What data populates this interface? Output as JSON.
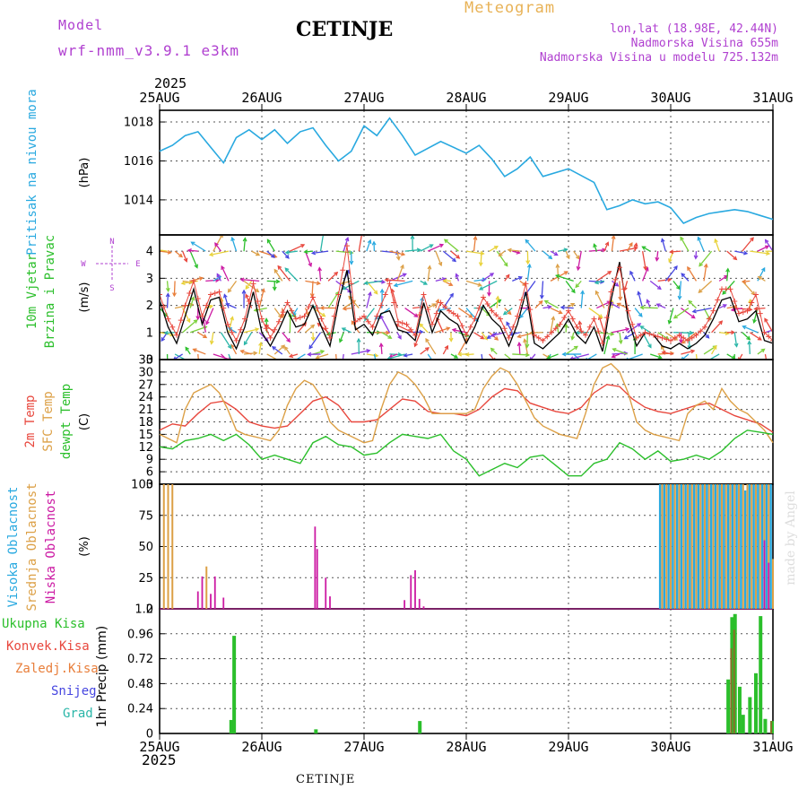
{
  "header": {
    "model_label": "Model",
    "model_name": "wrf-nmm_v3.9.1 e3km",
    "station": "CETINJE",
    "meteogram": "Meteogram",
    "lonlat": "lon,lat (18.98E, 42.44N)",
    "elevation": "Nadmorska Visina 655m",
    "model_elevation": "Nadmorska Visina u modelu 725.132m",
    "year_top": "2025",
    "year_bottom": "2025",
    "footer_station": "CETINJE",
    "credit": "made by Angel"
  },
  "colors": {
    "pressure": "#29a9e0",
    "temp2m": "#e8473d",
    "sfc": "#dca046",
    "dewpt": "#2bbf2b",
    "high_cloud": "#29a9e0",
    "mid_cloud": "#dca046",
    "low_cloud": "#cc1aa3",
    "total_precip": "#2bbf2b",
    "conv_precip": "#e8473d",
    "frozen_precip": "#e87e3a",
    "snow": "#4646e0",
    "hail": "#2ab6a8",
    "wind_model": "#000000",
    "wind_gust": "#e8473d",
    "compass": "#b040d0"
  },
  "compass": {
    "north": "N",
    "south": "S",
    "west": "W",
    "east": "E"
  },
  "chart_data": [
    {
      "type": "line",
      "id": "pressure",
      "ylabel": "(hPa)",
      "side_labels": [
        {
          "text": "Pritisak na nivou mora",
          "color": "#29a9e0"
        }
      ],
      "x_ticks": [
        "25AUG",
        "26AUG",
        "27AUG",
        "28AUG",
        "29AUG",
        "30AUG",
        "31AUG"
      ],
      "ylim": [
        1012.2,
        1018.6
      ],
      "yticks": [
        1014,
        1016,
        1018
      ],
      "hours": [
        0,
        3,
        6,
        9,
        12,
        15,
        18,
        21,
        24,
        27,
        30,
        33,
        36,
        39,
        42,
        45,
        48,
        51,
        54,
        57,
        60,
        66,
        72,
        75,
        78,
        81,
        84,
        87,
        90,
        96,
        102,
        105,
        108,
        111,
        114,
        117,
        120,
        123,
        126,
        129,
        132,
        135,
        138,
        141,
        144
      ],
      "values": [
        1016.5,
        1016.8,
        1017.3,
        1017.5,
        1016.7,
        1015.9,
        1017.2,
        1017.6,
        1017.1,
        1017.6,
        1016.9,
        1017.5,
        1017.7,
        1016.8,
        1016.0,
        1016.5,
        1017.8,
        1017.3,
        1018.2,
        1017.3,
        1016.3,
        1017.0,
        1016.4,
        1016.8,
        1016.1,
        1015.2,
        1015.6,
        1016.2,
        1015.2,
        1015.6,
        1014.9,
        1013.5,
        1013.7,
        1014.0,
        1013.8,
        1013.9,
        1013.6,
        1012.8,
        1013.1,
        1013.3,
        1013.4,
        1013.5,
        1013.4,
        1013.2,
        1013.0
      ]
    },
    {
      "type": "line",
      "id": "wind",
      "ylabel": "(m/s)",
      "side_labels": [
        {
          "text": "10m Vjetar",
          "color": "#2bbf2b"
        },
        {
          "text": "Brzina i Pravac",
          "color": "#2bbf2b"
        }
      ],
      "ylim": [
        0,
        4.6
      ],
      "yticks": [
        0,
        1,
        2,
        3,
        4
      ],
      "series": [
        {
          "name": "speed",
          "hours": [
            0,
            2,
            4,
            6,
            8,
            10,
            12,
            14,
            16,
            18,
            20,
            22,
            24,
            26,
            28,
            30,
            32,
            34,
            36,
            38,
            40,
            42,
            44,
            46,
            48,
            50,
            52,
            54,
            56,
            58,
            60,
            62,
            64,
            66,
            68,
            70,
            72,
            74,
            76,
            78,
            80,
            82,
            84,
            86,
            88,
            90,
            92,
            94,
            96,
            98,
            100,
            102,
            104,
            106,
            108,
            110,
            112,
            114,
            116,
            118,
            120,
            122,
            124,
            126,
            128,
            130,
            132,
            134,
            136,
            138,
            140,
            142,
            144
          ],
          "values": [
            2.2,
            1.2,
            0.6,
            1.6,
            2.6,
            1.3,
            2.2,
            2.3,
            1.0,
            0.4,
            1.2,
            2.5,
            1.0,
            0.5,
            1.1,
            1.8,
            1.2,
            1.3,
            2.0,
            1.2,
            0.5,
            2.1,
            3.3,
            1.1,
            1.3,
            0.9,
            1.7,
            1.8,
            1.1,
            1.0,
            0.7,
            2.1,
            1.0,
            1.8,
            1.5,
            1.3,
            0.6,
            1.2,
            2.0,
            1.5,
            1.2,
            0.5,
            1.3,
            2.5,
            0.6,
            0.4,
            0.7,
            1.0,
            1.5,
            0.9,
            0.6,
            1.2,
            0.3,
            2.2,
            3.6,
            1.5,
            0.5,
            1.0,
            0.9,
            0.5,
            0.4,
            0.6,
            0.4,
            0.6,
            0.9,
            1.5,
            2.2,
            2.3,
            1.4,
            1.5,
            1.8,
            0.7,
            0.6
          ]
        },
        {
          "name": "gust",
          "hours": [
            0,
            2,
            4,
            6,
            8,
            10,
            12,
            14,
            16,
            18,
            20,
            22,
            24,
            26,
            28,
            30,
            32,
            34,
            36,
            38,
            40,
            42,
            44,
            46,
            48,
            50,
            52,
            54,
            56,
            58,
            60,
            62,
            64,
            66,
            68,
            70,
            72,
            74,
            76,
            78,
            80,
            82,
            84,
            86,
            88,
            90,
            92,
            94,
            96,
            98,
            100,
            102,
            104,
            106,
            108,
            110,
            112,
            114,
            116,
            118,
            120,
            122,
            124,
            126,
            128,
            130,
            132,
            134,
            136,
            138,
            140,
            142,
            144
          ],
          "values": [
            2.4,
            1.5,
            0.9,
            2.0,
            2.9,
            1.6,
            2.4,
            2.5,
            1.3,
            0.7,
            1.5,
            2.8,
            1.5,
            0.8,
            1.4,
            2.1,
            1.5,
            1.6,
            2.3,
            1.5,
            0.8,
            2.4,
            4.2,
            1.4,
            1.6,
            1.2,
            2.0,
            2.8,
            1.4,
            1.3,
            0.9,
            2.4,
            1.3,
            2.1,
            1.8,
            1.6,
            0.9,
            1.5,
            2.3,
            1.8,
            1.5,
            0.8,
            1.6,
            2.8,
            0.9,
            0.7,
            1.0,
            1.3,
            1.8,
            1.2,
            0.9,
            1.5,
            0.6,
            2.5,
            3.4,
            1.8,
            0.8,
            1.0,
            0.9,
            0.8,
            0.7,
            0.9,
            0.7,
            0.9,
            1.2,
            1.8,
            2.6,
            2.6,
            1.7,
            1.8,
            2.4,
            1.0,
            0.7
          ]
        }
      ]
    },
    {
      "type": "line",
      "id": "temperature",
      "ylabel": "(C)",
      "side_labels": [
        {
          "text": "2m Temp",
          "color": "#e8473d"
        },
        {
          "text": "SFC Temp",
          "color": "#dca046"
        },
        {
          "text": "dewpt Temp",
          "color": "#2bbf2b"
        }
      ],
      "ylim": [
        3,
        33
      ],
      "yticks": [
        3,
        6,
        9,
        12,
        15,
        18,
        21,
        24,
        27,
        30,
        33
      ],
      "series": [
        {
          "name": "2m Temp",
          "hours": [
            0,
            3,
            6,
            9,
            12,
            15,
            18,
            21,
            24,
            27,
            30,
            33,
            36,
            39,
            42,
            45,
            48,
            51,
            54,
            57,
            60,
            63,
            66,
            69,
            72,
            75,
            78,
            81,
            84,
            87,
            90,
            93,
            96,
            99,
            102,
            105,
            108,
            111,
            114,
            117,
            120,
            123,
            126,
            129,
            132,
            135,
            138,
            141,
            144
          ],
          "values": [
            16,
            17.5,
            17,
            20,
            22.5,
            23,
            21,
            18,
            17,
            16.5,
            17,
            20,
            23,
            24,
            22,
            18,
            18,
            18.5,
            21,
            23.5,
            23,
            20.5,
            20,
            20,
            19.5,
            21,
            24,
            26,
            25.5,
            22.5,
            21.5,
            20.5,
            20,
            21.5,
            25,
            27,
            26.5,
            23.5,
            21.5,
            20.5,
            20,
            21,
            22,
            22.5,
            21,
            19.5,
            18.5,
            17.5,
            15.5
          ]
        },
        {
          "name": "SFC Temp",
          "hours": [
            0,
            2,
            4,
            6,
            8,
            10,
            12,
            14,
            16,
            18,
            20,
            22,
            24,
            26,
            28,
            30,
            32,
            34,
            36,
            38,
            40,
            42,
            44,
            46,
            48,
            50,
            52,
            54,
            56,
            58,
            60,
            62,
            64,
            66,
            68,
            70,
            72,
            74,
            76,
            78,
            80,
            82,
            84,
            86,
            88,
            90,
            92,
            94,
            96,
            98,
            100,
            102,
            104,
            106,
            108,
            110,
            112,
            114,
            116,
            118,
            120,
            122,
            124,
            126,
            128,
            130,
            132,
            134,
            136,
            138,
            140,
            142,
            144
          ],
          "values": [
            15,
            14,
            13,
            21,
            25,
            26,
            27,
            25,
            21,
            16,
            15,
            14.5,
            14,
            13.5,
            16,
            22,
            26,
            28,
            27,
            24,
            18,
            16,
            15,
            14,
            13,
            13.5,
            21,
            27,
            30,
            29,
            27,
            24,
            20,
            20,
            20,
            20,
            20,
            21,
            26,
            29,
            31,
            30,
            27,
            23,
            19,
            17,
            16,
            15,
            14.5,
            14,
            20,
            27,
            31,
            32,
            30,
            25,
            18,
            16,
            15,
            14.5,
            14,
            13.5,
            20,
            22,
            23,
            21,
            26,
            23,
            21,
            20,
            18,
            16,
            13
          ]
        },
        {
          "name": "dewpt Temp",
          "hours": [
            0,
            3,
            6,
            9,
            12,
            15,
            18,
            21,
            24,
            27,
            30,
            33,
            36,
            39,
            42,
            45,
            48,
            51,
            54,
            57,
            60,
            63,
            66,
            69,
            72,
            75,
            78,
            81,
            84,
            87,
            90,
            93,
            96,
            99,
            102,
            105,
            108,
            111,
            114,
            117,
            120,
            123,
            126,
            129,
            132,
            135,
            138,
            141,
            144
          ],
          "values": [
            12,
            11.5,
            13.5,
            14,
            15,
            13.5,
            15,
            12.5,
            9,
            10,
            9,
            8,
            13,
            14.5,
            12.5,
            12,
            10,
            10.5,
            13,
            15,
            14.5,
            14,
            15,
            11,
            9,
            5,
            6.5,
            8,
            7,
            9.5,
            10,
            7.5,
            5,
            5,
            8,
            9,
            13,
            11.5,
            9,
            11,
            8.5,
            9,
            10,
            9,
            11,
            14,
            16,
            15.5,
            15
          ]
        }
      ]
    },
    {
      "type": "bar",
      "id": "clouds",
      "ylabel": "(%)",
      "side_labels": [
        {
          "text": "Visoka Oblacnost",
          "color": "#29a9e0"
        },
        {
          "text": "Srednja Oblacnost",
          "color": "#dca046"
        },
        {
          "text": "Niska Oblacnost",
          "color": "#cc1aa3"
        }
      ],
      "ylim": [
        0,
        100
      ],
      "yticks": [
        0,
        25,
        50,
        75,
        100
      ],
      "series": [
        {
          "name": "high",
          "hours": [
            117.5,
            118.5,
            119.5,
            120.5,
            121.5,
            122.5,
            123.5,
            124.5,
            125.5,
            126.5,
            127.5,
            128.5,
            129.5,
            130.5,
            131.5,
            132.5,
            133.5,
            134.5,
            135.5,
            136.5,
            137.5,
            138.5,
            139.5,
            140.5,
            141.5,
            142.5,
            143.5
          ],
          "values": [
            100,
            100,
            100,
            100,
            100,
            100,
            100,
            100,
            100,
            100,
            100,
            100,
            100,
            100,
            100,
            100,
            100,
            100,
            100,
            100,
            95,
            100,
            100,
            100,
            100,
            100,
            100
          ]
        },
        {
          "name": "mid",
          "hours": [
            1,
            2,
            3,
            11,
            118,
            119,
            120,
            121,
            122,
            123,
            124,
            125,
            126,
            127,
            128,
            129,
            130,
            131,
            132,
            133,
            134,
            135,
            136,
            137,
            138,
            139,
            140,
            141,
            142,
            143,
            144
          ],
          "values": [
            100,
            100,
            100,
            34,
            100,
            100,
            100,
            100,
            100,
            100,
            100,
            100,
            100,
            100,
            100,
            100,
            100,
            100,
            100,
            100,
            100,
            100,
            100,
            100,
            100,
            100,
            100,
            100,
            100,
            100,
            40
          ]
        },
        {
          "name": "low",
          "hours": [
            9,
            10,
            12,
            13,
            15,
            36.5,
            37,
            39,
            40,
            57.5,
            59,
            60,
            61,
            62,
            142,
            143
          ],
          "values": [
            14,
            26,
            12,
            26,
            9,
            66,
            48,
            25,
            10,
            7,
            27,
            31,
            8,
            2,
            55,
            37
          ]
        }
      ]
    },
    {
      "type": "bar",
      "id": "precipitation",
      "ylabel": "1hr Precip (mm)",
      "side_labels": [
        {
          "text": "Ukupna Kisa",
          "color": "#2bbf2b"
        },
        {
          "text": "Konvek.Kisa",
          "color": "#e8473d"
        },
        {
          "text": "Zaledj.Kisa",
          "color": "#e87e3a"
        },
        {
          "text": "Snijeg",
          "color": "#4646e0"
        },
        {
          "text": "Grad",
          "color": "#2ab6a8"
        }
      ],
      "ylim": [
        0,
        1.2
      ],
      "yticks": [
        0,
        0.24,
        0.48,
        0.72,
        0.96,
        1.2
      ],
      "yticklabels": [
        "0",
        "0.24",
        "0.48",
        "0.72",
        "0.96",
        "1.2"
      ],
      "series": [
        {
          "name": "total",
          "hours": [
            16.8,
            17.5,
            36.7,
            61.1,
            133.5,
            134.4,
            135.1,
            136.2,
            137.0,
            138.6,
            140.0,
            141.1,
            142.2,
            143.8
          ],
          "values": [
            0.13,
            0.94,
            0.04,
            0.12,
            0.52,
            1.12,
            1.15,
            0.45,
            0.18,
            0.35,
            0.58,
            1.13,
            0.14,
            0.12
          ]
        },
        {
          "name": "convective",
          "hours": [
            134.2,
            134.9,
            143.6
          ],
          "values": [
            0.82,
            1.0,
            0.12
          ]
        }
      ]
    }
  ]
}
